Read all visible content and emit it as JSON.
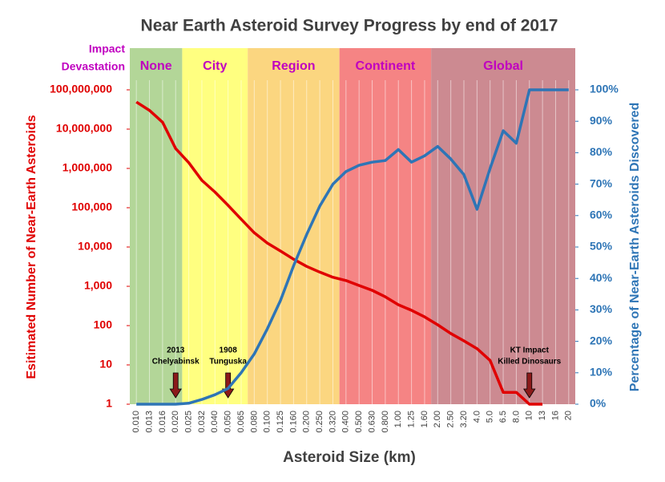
{
  "chart_data": {
    "type": "line",
    "title": "Near Earth Asteroid Survey Progress by end of 2017",
    "xlabel": "Asteroid Size (km)",
    "ylabel": "Esitimated Number of Near-Earth Asteroids",
    "y2label": "Percentage of Near-Earth Asteroids Discovered",
    "region_heading": [
      "Impact",
      "Devastation"
    ],
    "categories": [
      "0.010",
      "0.013",
      "0.016",
      "0.020",
      "0.025",
      "0.032",
      "0.040",
      "0.050",
      "0.065",
      "0.080",
      "0.100",
      "0.125",
      "0.160",
      "0.200",
      "0.250",
      "0.320",
      "0.400",
      "0.500",
      "0.630",
      "0.800",
      "1.00",
      "1.25",
      "1.60",
      "2.00",
      "2.50",
      "3.20",
      "4.0",
      "5.0",
      "6.5",
      "8.0",
      "10",
      "13",
      "16",
      "20"
    ],
    "regions": [
      {
        "name": "None",
        "start": "0.010",
        "color": "#b3d698"
      },
      {
        "name": "City",
        "start": "0.025",
        "color": "#ffff80"
      },
      {
        "name": "Region",
        "start": "0.080",
        "color": "#fbd680"
      },
      {
        "name": "Continent",
        "start": "0.400",
        "color": "#f58484"
      },
      {
        "name": "Global",
        "start": "2.00",
        "color": "#cc8a91"
      }
    ],
    "series": [
      {
        "name": "Estimated Number",
        "color": "#e00000",
        "axis": "y",
        "values": [
          49000000,
          30000000,
          15000000,
          3200000,
          1400000,
          500000,
          250000,
          115000,
          51000,
          23000,
          12600,
          7900,
          4900,
          3200,
          2300,
          1700,
          1400,
          1050,
          790,
          540,
          340,
          245,
          167,
          105,
          63,
          41,
          26,
          13,
          2,
          2,
          1,
          1,
          null,
          null
        ]
      },
      {
        "name": "Percentage Discovered",
        "color": "#2e75b6",
        "axis": "y2",
        "values": [
          0,
          0,
          0,
          0,
          0.3,
          1.5,
          3,
          5,
          10,
          16,
          24,
          33,
          44,
          54,
          63,
          70,
          74,
          76,
          77,
          77.5,
          81,
          77,
          79,
          82,
          78,
          73,
          62,
          75,
          87,
          83,
          100,
          100,
          100,
          100
        ]
      }
    ],
    "yscale": "log",
    "ylim": [
      1,
      100000000
    ],
    "yticks": [
      1,
      10,
      100,
      {
        "value": 1000,
        "label": "1,000"
      },
      {
        "value": 10000,
        "label": "10,000"
      },
      {
        "value": 100000,
        "label": "100,000"
      },
      {
        "value": 1000000,
        "label": "1,000,000"
      },
      {
        "value": 10000000,
        "label": "10,000,000"
      },
      {
        "value": 100000000,
        "label": "100,000,000"
      }
    ],
    "y2lim": [
      0,
      100
    ],
    "y2ticks": [
      {
        "value": 0,
        "label": "0%"
      },
      {
        "value": 10,
        "label": "10%"
      },
      {
        "value": 20,
        "label": "20%"
      },
      {
        "value": 30,
        "label": "30%"
      },
      {
        "value": 40,
        "label": "40%"
      },
      {
        "value": 50,
        "label": "50%"
      },
      {
        "value": 60,
        "label": "60%"
      },
      {
        "value": 70,
        "label": "70%"
      },
      {
        "value": 80,
        "label": "80%"
      },
      {
        "value": 90,
        "label": "90%"
      },
      {
        "value": 100,
        "label": "100%"
      }
    ],
    "annotations": [
      {
        "lines": [
          "2013",
          "Chelyabinsk"
        ],
        "category": "0.020"
      },
      {
        "lines": [
          "1908",
          "Tunguska"
        ],
        "category": "0.050"
      },
      {
        "lines": [
          "KT Impact",
          "Killed Dinosaurs"
        ],
        "category": "10"
      }
    ]
  }
}
